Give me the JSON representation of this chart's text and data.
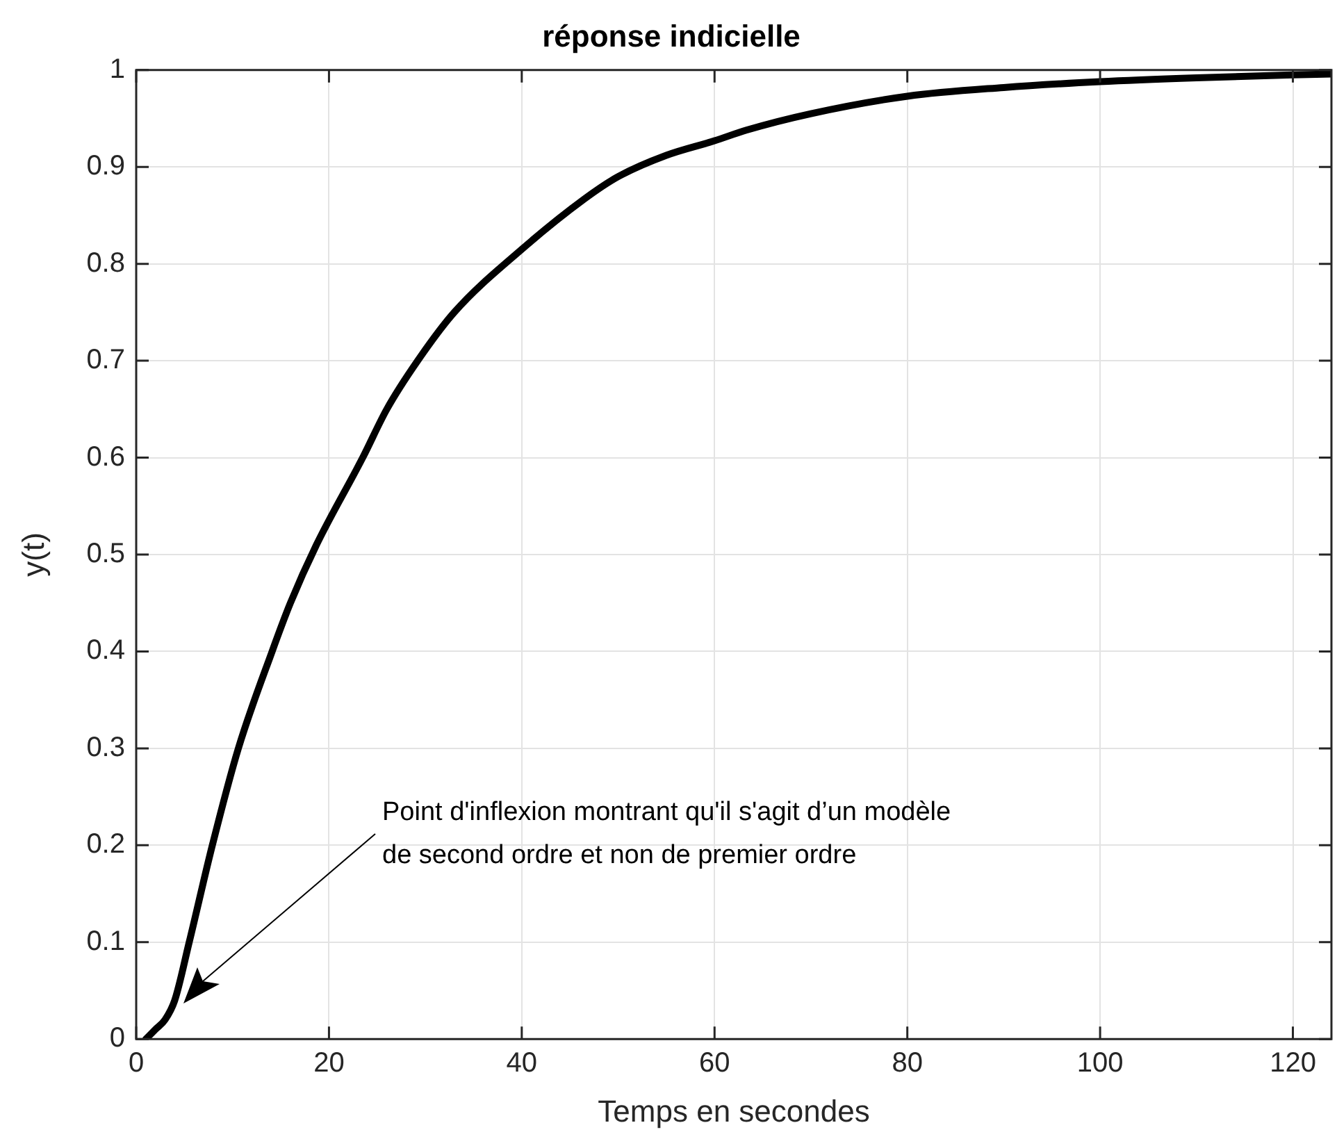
{
  "chart_data": {
    "type": "line",
    "title": "réponse indicielle",
    "xlabel": "Temps en secondes",
    "ylabel": "y(t)",
    "x": [
      1,
      2,
      3,
      4,
      5.5,
      7.9,
      10.6,
      14.1,
      16,
      18.7,
      23.5,
      26,
      29.2,
      33,
      40,
      46.5,
      50,
      55,
      60,
      63.3,
      70,
      80,
      90,
      100,
      110,
      120,
      124
    ],
    "series": [
      {
        "color": "#000000",
        "values": [
          0,
          0.01,
          0.02,
          0.04,
          0.1,
          0.2,
          0.3,
          0.4,
          0.45,
          0.51,
          0.6,
          0.65,
          0.7,
          0.75,
          0.815,
          0.867,
          0.89,
          0.912,
          0.927,
          0.938,
          0.955,
          0.973,
          0.982,
          0.988,
          0.992,
          0.995,
          0.996
        ]
      }
    ],
    "xlim": [
      0,
      124
    ],
    "xticks": [
      0,
      20,
      40,
      60,
      80,
      100,
      120
    ],
    "ylim": [
      0,
      1
    ],
    "yticks": [
      0,
      0.1,
      0.2,
      0.3,
      0.4,
      0.5,
      0.6,
      0.7,
      0.8,
      0.9,
      1
    ],
    "grid": true,
    "legend": false,
    "marker": "none",
    "line_style": "solid",
    "annotations": [
      "Point d'inflexion montrant qu'il s'agit d’un modèle\nde second ordre et non de premier ordre"
    ]
  }
}
